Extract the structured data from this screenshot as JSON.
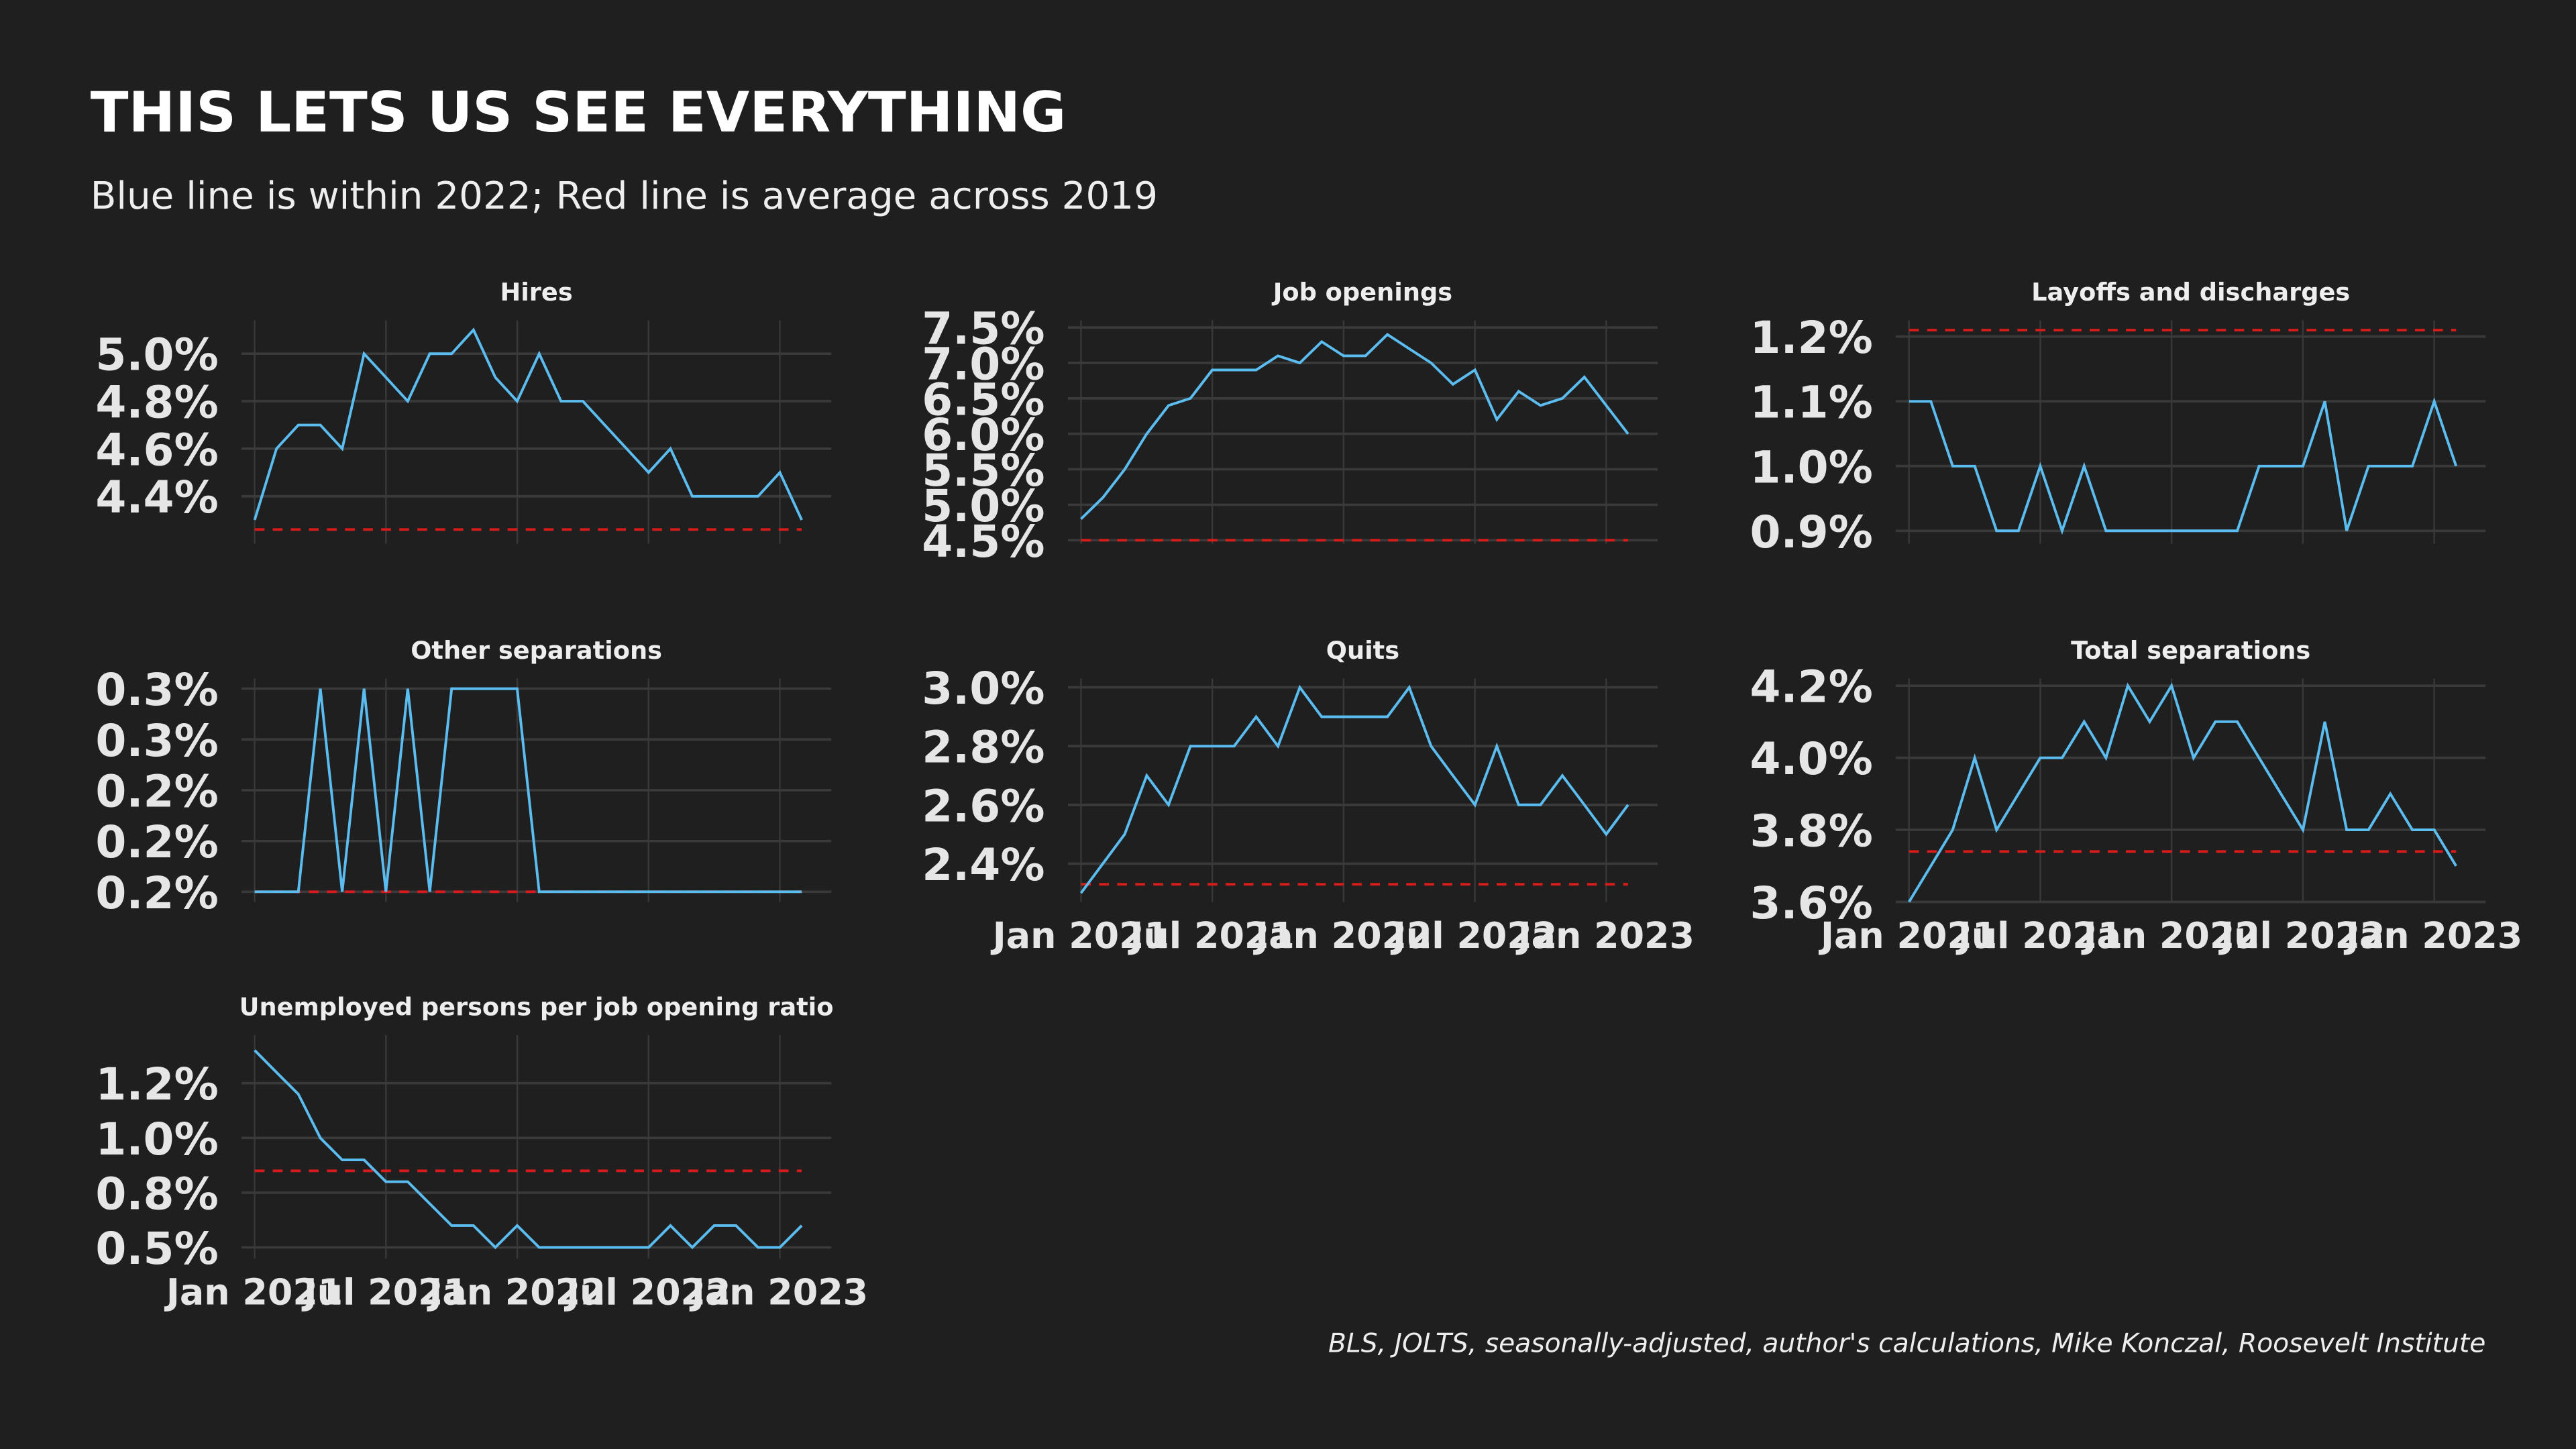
{
  "title": "THIS LETS US SEE EVERYTHING",
  "subtitle": "Blue line is within 2022; Red line is average across 2019",
  "source": "BLS, JOLTS, seasonally-adjusted, author's calculations, Mike Konczal, Roosevelt Institute",
  "chart_data": [
    {
      "type": "line",
      "title": "Hires",
      "x": [
        "2021-01",
        "2021-02",
        "2021-03",
        "2021-04",
        "2021-05",
        "2021-06",
        "2021-07",
        "2021-08",
        "2021-09",
        "2021-10",
        "2021-11",
        "2021-12",
        "2022-01",
        "2022-02",
        "2022-03",
        "2022-04",
        "2022-05",
        "2022-06",
        "2022-07",
        "2022-08",
        "2022-09",
        "2022-10",
        "2022-11",
        "2022-12",
        "2023-01",
        "2023-02"
      ],
      "values": [
        4.3,
        4.6,
        4.7,
        4.7,
        4.6,
        5.0,
        4.9,
        4.8,
        5.0,
        5.0,
        5.1,
        4.9,
        4.8,
        5.0,
        4.8,
        4.8,
        4.7,
        4.6,
        4.5,
        4.6,
        4.4,
        4.4,
        4.4,
        4.4,
        4.5,
        4.3
      ],
      "color": "#5bbcef",
      "reference_line": 4.26,
      "reference_color": "#d81b1b",
      "ylim": [
        4.2,
        5.14
      ],
      "yticks": [
        {
          "value": 4.4,
          "label": "4.4%"
        },
        {
          "value": 4.6,
          "label": "4.6%"
        },
        {
          "value": 4.8,
          "label": "4.8%"
        },
        {
          "value": 5.0,
          "label": "5.0%"
        }
      ],
      "xticks": [
        {
          "value": "2021-01",
          "label": "Jan 2021"
        },
        {
          "value": "2021-07",
          "label": "Jul 2021"
        },
        {
          "value": "2022-01",
          "label": "Jan 2022"
        },
        {
          "value": "2022-07",
          "label": "Jul 2022"
        },
        {
          "value": "2023-01",
          "label": "Jan 2023"
        }
      ],
      "grid": true
    },
    {
      "type": "line",
      "title": "Job openings",
      "x": [
        "2021-01",
        "2021-02",
        "2021-03",
        "2021-04",
        "2021-05",
        "2021-06",
        "2021-07",
        "2021-08",
        "2021-09",
        "2021-10",
        "2021-11",
        "2021-12",
        "2022-01",
        "2022-02",
        "2022-03",
        "2022-04",
        "2022-05",
        "2022-06",
        "2022-07",
        "2022-08",
        "2022-09",
        "2022-10",
        "2022-11",
        "2022-12",
        "2023-01",
        "2023-02"
      ],
      "values": [
        4.8,
        5.1,
        5.5,
        6.0,
        6.4,
        6.5,
        6.9,
        6.9,
        6.9,
        7.1,
        7.0,
        7.3,
        7.1,
        7.1,
        7.4,
        7.2,
        7.0,
        6.7,
        6.9,
        6.2,
        6.6,
        6.4,
        6.5,
        6.8,
        6.4,
        6.0
      ],
      "color": "#5bbcef",
      "reference_line": 4.5,
      "reference_color": "#d81b1b",
      "ylim": [
        4.45,
        7.6
      ],
      "yticks": [
        {
          "value": 4.5,
          "label": "4.5%"
        },
        {
          "value": 5.0,
          "label": "5.0%"
        },
        {
          "value": 5.5,
          "label": "5.5%"
        },
        {
          "value": 6.0,
          "label": "6.0%"
        },
        {
          "value": 6.5,
          "label": "6.5%"
        },
        {
          "value": 7.0,
          "label": "7.0%"
        },
        {
          "value": 7.5,
          "label": "7.5%"
        }
      ],
      "xticks": [
        {
          "value": "2021-01",
          "label": "Jan 2021"
        },
        {
          "value": "2021-07",
          "label": "Jul 2021"
        },
        {
          "value": "2022-01",
          "label": "Jan 2022"
        },
        {
          "value": "2022-07",
          "label": "Jul 2022"
        },
        {
          "value": "2023-01",
          "label": "Jan 2023"
        }
      ],
      "grid": true
    },
    {
      "type": "line",
      "title": "Layoffs and discharges",
      "x": [
        "2021-01",
        "2021-02",
        "2021-03",
        "2021-04",
        "2021-05",
        "2021-06",
        "2021-07",
        "2021-08",
        "2021-09",
        "2021-10",
        "2021-11",
        "2021-12",
        "2022-01",
        "2022-02",
        "2022-03",
        "2022-04",
        "2022-05",
        "2022-06",
        "2022-07",
        "2022-08",
        "2022-09",
        "2022-10",
        "2022-11",
        "2022-12",
        "2023-01",
        "2023-02"
      ],
      "values": [
        1.1,
        1.1,
        1.0,
        1.0,
        0.9,
        0.9,
        1.0,
        0.9,
        1.0,
        0.9,
        0.9,
        0.9,
        0.9,
        0.9,
        0.9,
        0.9,
        1.0,
        1.0,
        1.0,
        1.1,
        0.9,
        1.0,
        1.0,
        1.0,
        1.1,
        1.0
      ],
      "color": "#5bbcef",
      "reference_line": 1.21,
      "reference_color": "#d81b1b",
      "ylim": [
        0.88,
        1.225
      ],
      "yticks": [
        {
          "value": 0.9,
          "label": "0.9%"
        },
        {
          "value": 1.0,
          "label": "1.0%"
        },
        {
          "value": 1.1,
          "label": "1.1%"
        },
        {
          "value": 1.2,
          "label": "1.2%"
        }
      ],
      "xticks": [
        {
          "value": "2021-01",
          "label": "Jan 2021"
        },
        {
          "value": "2021-07",
          "label": "Jul 2021"
        },
        {
          "value": "2022-01",
          "label": "Jan 2022"
        },
        {
          "value": "2022-07",
          "label": "Jul 2022"
        },
        {
          "value": "2023-01",
          "label": "Jan 2023"
        }
      ],
      "grid": true
    },
    {
      "type": "line",
      "title": "Other separations",
      "x": [
        "2021-01",
        "2021-02",
        "2021-03",
        "2021-04",
        "2021-05",
        "2021-06",
        "2021-07",
        "2021-08",
        "2021-09",
        "2021-10",
        "2021-11",
        "2021-12",
        "2022-01",
        "2022-02",
        "2022-03",
        "2022-04",
        "2022-05",
        "2022-06",
        "2022-07",
        "2022-08",
        "2022-09",
        "2022-10",
        "2022-11",
        "2022-12",
        "2023-01",
        "2023-02"
      ],
      "values": [
        0.2,
        0.2,
        0.2,
        0.3,
        0.2,
        0.3,
        0.2,
        0.3,
        0.2,
        0.3,
        0.3,
        0.3,
        0.3,
        0.2,
        0.2,
        0.2,
        0.2,
        0.2,
        0.2,
        0.2,
        0.2,
        0.2,
        0.2,
        0.2,
        0.2,
        0.2
      ],
      "color": "#5bbcef",
      "reference_line": 0.2,
      "reference_color": "#d81b1b",
      "ylim": [
        0.195,
        0.305
      ],
      "yticks": [
        {
          "value": 0.2,
          "label": "0.2%"
        },
        {
          "value": 0.225,
          "label": "0.2%"
        },
        {
          "value": 0.25,
          "label": "0.2%"
        },
        {
          "value": 0.275,
          "label": "0.3%"
        },
        {
          "value": 0.3,
          "label": "0.3%"
        }
      ],
      "xticks": [
        {
          "value": "2021-01",
          "label": "Jan 2021"
        },
        {
          "value": "2021-07",
          "label": "Jul 2021"
        },
        {
          "value": "2022-01",
          "label": "Jan 2022"
        },
        {
          "value": "2022-07",
          "label": "Jul 2022"
        },
        {
          "value": "2023-01",
          "label": "Jan 2023"
        }
      ],
      "grid": true
    },
    {
      "type": "line",
      "title": "Quits",
      "x": [
        "2021-01",
        "2021-02",
        "2021-03",
        "2021-04",
        "2021-05",
        "2021-06",
        "2021-07",
        "2021-08",
        "2021-09",
        "2021-10",
        "2021-11",
        "2021-12",
        "2022-01",
        "2022-02",
        "2022-03",
        "2022-04",
        "2022-05",
        "2022-06",
        "2022-07",
        "2022-08",
        "2022-09",
        "2022-10",
        "2022-11",
        "2022-12",
        "2023-01",
        "2023-02"
      ],
      "values": [
        2.3,
        2.4,
        2.5,
        2.7,
        2.6,
        2.8,
        2.8,
        2.8,
        2.9,
        2.8,
        3.0,
        2.9,
        2.9,
        2.9,
        2.9,
        3.0,
        2.8,
        2.7,
        2.6,
        2.8,
        2.6,
        2.6,
        2.7,
        2.6,
        2.5,
        2.6
      ],
      "color": "#5bbcef",
      "reference_line": 2.33,
      "reference_color": "#d81b1b",
      "ylim": [
        2.27,
        3.03
      ],
      "yticks": [
        {
          "value": 2.4,
          "label": "2.4%"
        },
        {
          "value": 2.6,
          "label": "2.6%"
        },
        {
          "value": 2.8,
          "label": "2.8%"
        },
        {
          "value": 3.0,
          "label": "3.0%"
        }
      ],
      "xticks": [
        {
          "value": "2021-01",
          "label": "Jan 2021"
        },
        {
          "value": "2021-07",
          "label": "Jul 2021"
        },
        {
          "value": "2022-01",
          "label": "Jan 2022"
        },
        {
          "value": "2022-07",
          "label": "Jul 2022"
        },
        {
          "value": "2023-01",
          "label": "Jan 2023"
        }
      ],
      "grid": true
    },
    {
      "type": "line",
      "title": "Total separations",
      "x": [
        "2021-01",
        "2021-02",
        "2021-03",
        "2021-04",
        "2021-05",
        "2021-06",
        "2021-07",
        "2021-08",
        "2021-09",
        "2021-10",
        "2021-11",
        "2021-12",
        "2022-01",
        "2022-02",
        "2022-03",
        "2022-04",
        "2022-05",
        "2022-06",
        "2022-07",
        "2022-08",
        "2022-09",
        "2022-10",
        "2022-11",
        "2022-12",
        "2023-01",
        "2023-02"
      ],
      "values": [
        3.6,
        3.7,
        3.8,
        4.0,
        3.8,
        3.9,
        4.0,
        4.0,
        4.1,
        4.0,
        4.2,
        4.1,
        4.2,
        4.0,
        4.1,
        4.1,
        4.0,
        3.9,
        3.8,
        4.1,
        3.8,
        3.8,
        3.9,
        3.8,
        3.8,
        3.7
      ],
      "color": "#5bbcef",
      "reference_line": 3.74,
      "reference_color": "#d81b1b",
      "ylim": [
        3.6,
        4.22
      ],
      "yticks": [
        {
          "value": 3.6,
          "label": "3.6%"
        },
        {
          "value": 3.8,
          "label": "3.8%"
        },
        {
          "value": 4.0,
          "label": "4.0%"
        },
        {
          "value": 4.2,
          "label": "4.2%"
        }
      ],
      "xticks": [
        {
          "value": "2021-01",
          "label": "Jan 2021"
        },
        {
          "value": "2021-07",
          "label": "Jul 2021"
        },
        {
          "value": "2022-01",
          "label": "Jan 2022"
        },
        {
          "value": "2022-07",
          "label": "Jul 2022"
        },
        {
          "value": "2023-01",
          "label": "Jan 2023"
        }
      ],
      "grid": true
    },
    {
      "type": "line",
      "title": "Unemployed persons per job opening ratio",
      "x": [
        "2021-01",
        "2021-02",
        "2021-03",
        "2021-04",
        "2021-05",
        "2021-06",
        "2021-07",
        "2021-08",
        "2021-09",
        "2021-10",
        "2021-11",
        "2021-12",
        "2022-01",
        "2022-02",
        "2022-03",
        "2022-04",
        "2022-05",
        "2022-06",
        "2022-07",
        "2022-08",
        "2022-09",
        "2022-10",
        "2022-11",
        "2022-12",
        "2023-01",
        "2023-02"
      ],
      "values": [
        1.4,
        1.3,
        1.2,
        1.0,
        0.9,
        0.9,
        0.8,
        0.8,
        0.7,
        0.6,
        0.6,
        0.5,
        0.6,
        0.5,
        0.5,
        0.5,
        0.5,
        0.5,
        0.5,
        0.6,
        0.5,
        0.6,
        0.6,
        0.5,
        0.5,
        0.6
      ],
      "color": "#5bbcef",
      "reference_line": 0.85,
      "reference_color": "#d81b1b",
      "ylim": [
        0.45,
        1.47
      ],
      "yticks": [
        {
          "value": 0.5,
          "label": "0.5%"
        },
        {
          "value": 0.75,
          "label": "0.8%"
        },
        {
          "value": 1.0,
          "label": "1.0%"
        },
        {
          "value": 1.25,
          "label": "1.2%"
        }
      ],
      "xticks": [
        {
          "value": "2021-01",
          "label": "Jan 2021"
        },
        {
          "value": "2021-07",
          "label": "Jul 2021"
        },
        {
          "value": "2022-01",
          "label": "Jan 2022"
        },
        {
          "value": "2022-07",
          "label": "Jul 2022"
        },
        {
          "value": "2023-01",
          "label": "Jan 2023"
        }
      ],
      "grid": true
    }
  ]
}
